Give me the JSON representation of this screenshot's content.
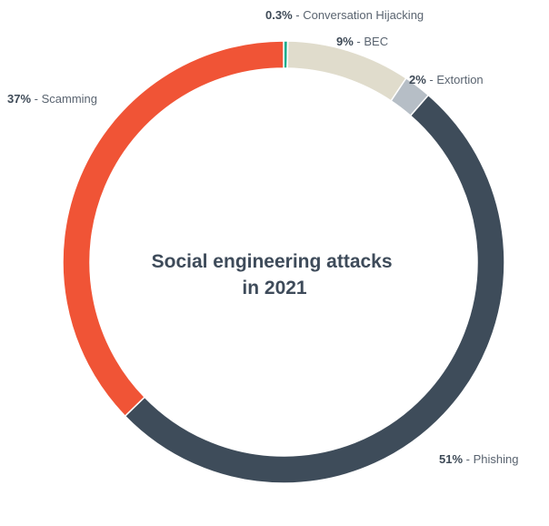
{
  "chart_data": {
    "type": "pie",
    "title_lines": [
      "Social engineering attacks",
      "in 2021"
    ],
    "slices": [
      {
        "name": "Conversation Hijacking",
        "value": 0.3,
        "label": "0.3%",
        "color": "#1fae8d"
      },
      {
        "name": "BEC",
        "value": 9,
        "label": "9%",
        "color": "#e0dccc"
      },
      {
        "name": "Extortion",
        "value": 2,
        "label": "2%",
        "color": "#b6bec6"
      },
      {
        "name": "Phishing",
        "value": 51,
        "label": "51%",
        "color": "#3e4c5a"
      },
      {
        "name": "Scamming",
        "value": 37,
        "label": "37%",
        "color": "#f05436"
      }
    ],
    "separator": " - "
  }
}
